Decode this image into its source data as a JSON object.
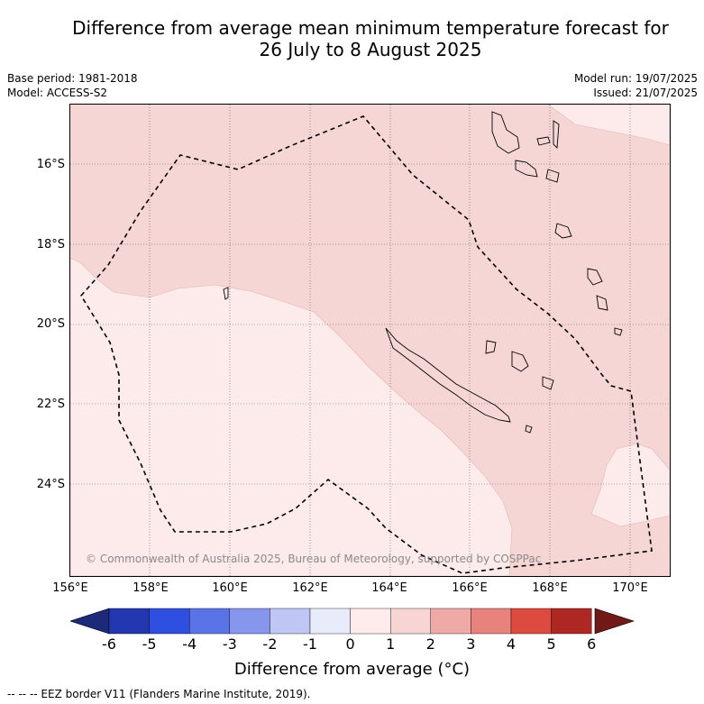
{
  "title_line1": "Difference from average mean minimum temperature forecast for",
  "title_line2": "26 July to 8 August 2025",
  "base_period": "Base period: 1981-2018",
  "model": "Model: ACCESS-S2",
  "model_run": "Model run: 19/07/2025",
  "issued": "Issued: 21/07/2025",
  "credit": "© Commonwealth of Australia 2025, Bureau of Meteorology, supported by COSPPac",
  "lat_ticks": [
    "16°S",
    "18°S",
    "20°S",
    "22°S",
    "24°S"
  ],
  "lon_ticks": [
    "156°E",
    "158°E",
    "160°E",
    "162°E",
    "164°E",
    "166°E",
    "168°E",
    "170°E"
  ],
  "colorbar": {
    "ticks": [
      "-6",
      "-5",
      "-4",
      "-3",
      "-2",
      "-1",
      "0",
      "1",
      "2",
      "3",
      "4",
      "5",
      "6"
    ],
    "label": "Difference from average (°C)",
    "colors": [
      "#1b2a7a",
      "#2338b0",
      "#2f4fe0",
      "#5a73e6",
      "#8696ec",
      "#c0c6f4",
      "#e8ecfa",
      "#fdeceb",
      "#f6d5d4",
      "#efaaa7",
      "#e8827c",
      "#dc4a40",
      "#ae2723",
      "#701917"
    ]
  },
  "fill_colors": {
    "zero_to_one": "#fcebea",
    "one_to_two": "#f5d6d5"
  },
  "legend": "-- -- -- EEZ border V11 (Flanders Marine Institute, 2019)."
}
